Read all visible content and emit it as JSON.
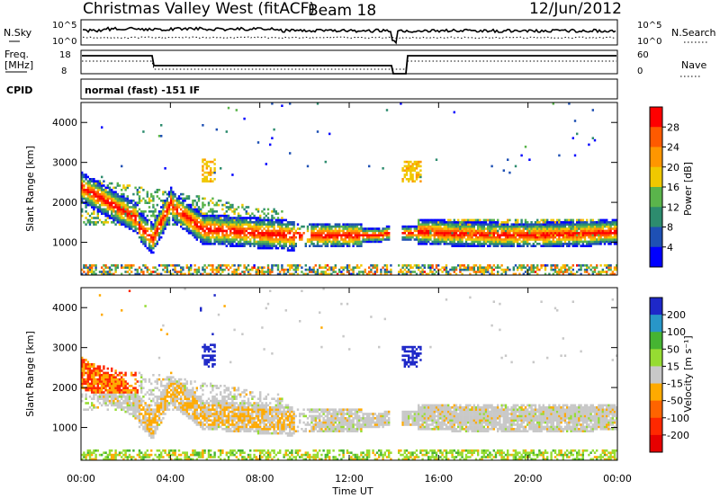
{
  "header": {
    "station": "Christmas Valley West (fitACF)",
    "beam": "Beam 18",
    "date": "12/Jun/2012"
  },
  "sky_panel": {
    "left_label": "N.Sky",
    "left_ticks": [
      "10^5",
      "10^0"
    ],
    "right_ticks": [
      "10^5",
      "10^0"
    ],
    "right_label": "N.Search"
  },
  "freq_panel": {
    "left_label_1": "Freq.",
    "left_label_2": "[MHz]",
    "left_ticks": [
      "18",
      "8"
    ],
    "right_ticks": [
      "60",
      "0"
    ],
    "right_label": "Nave"
  },
  "cpid_panel": {
    "label": "CPID",
    "text": "normal (fast) -151 IF"
  },
  "chart_data": [
    {
      "type": "heatmap",
      "quantity": "Power",
      "ylabel": "Slant Range [km]",
      "ylim": [
        180,
        4500
      ],
      "y_ticks": [
        "4000",
        "3000",
        "2000",
        "1000"
      ],
      "colorbar_label": "Power [dB]",
      "colorbar_ticks": [
        "28",
        "24",
        "20",
        "16",
        "12",
        "8",
        "4"
      ],
      "colorbar_colors": [
        "#ff0000",
        "#ff5a00",
        "#ff9600",
        "#f0c800",
        "#5ab44b",
        "#2d8c6e",
        "#1e50b4",
        "#0000ff"
      ],
      "range": [
        0,
        30
      ]
    },
    {
      "type": "heatmap",
      "quantity": "Velocity",
      "ylabel": "Slant Range [km]",
      "ylim": [
        180,
        4500
      ],
      "y_ticks": [
        "4000",
        "3000",
        "2000",
        "1000"
      ],
      "colorbar_label": "Velocity [m s⁻¹]",
      "colorbar_ticks": [
        "200",
        "100",
        "50",
        "15",
        "-15",
        "-50",
        "-100",
        "-200"
      ],
      "colorbar_colors": [
        "#1e28c8",
        "#2896c8",
        "#46b432",
        "#96dc32",
        "#c8c8c8",
        "#ffaa00",
        "#ff6400",
        "#ff2800",
        "#e60000"
      ],
      "range": [
        -250,
        250
      ]
    }
  ],
  "x_axis": {
    "ticks": [
      "00:00",
      "04:00",
      "08:00",
      "12:00",
      "16:00",
      "20:00",
      "00:00"
    ],
    "label": "Time UT"
  },
  "colors": {
    "power": [
      "#0000ff",
      "#1e50b4",
      "#2d8c6e",
      "#5ab44b",
      "#f0c800",
      "#ff9600",
      "#ff5a00",
      "#ff0000"
    ],
    "velocity": [
      "#e60000",
      "#ff2800",
      "#ff6400",
      "#ffaa00",
      "#c8c8c8",
      "#96dc32",
      "#46b432",
      "#2896c8",
      "#1e28c8"
    ]
  }
}
